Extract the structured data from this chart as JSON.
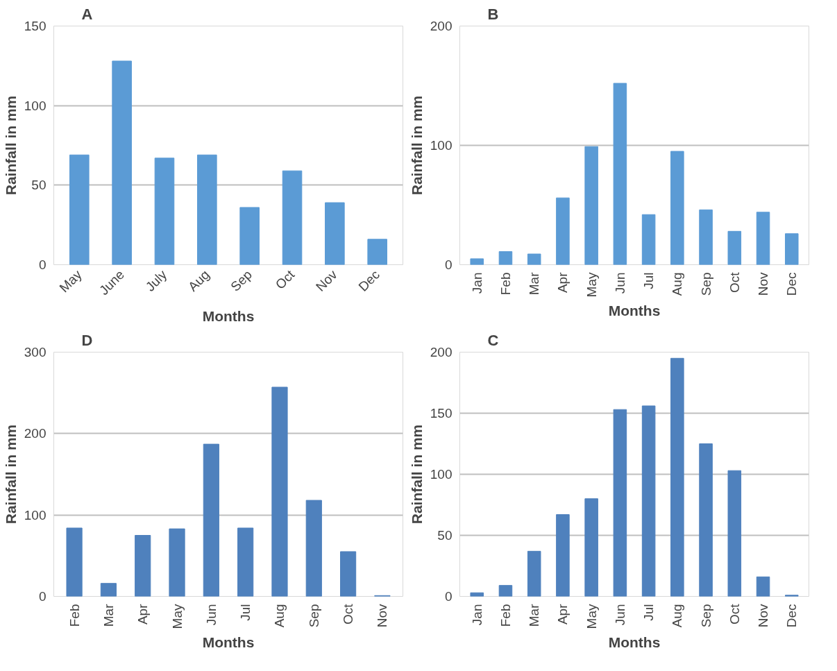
{
  "chart_data": [
    {
      "type": "bar",
      "title": "A",
      "xlabel": "Months",
      "ylabel": "Rainfall in mm",
      "categories": [
        "May",
        "June",
        "July",
        "Aug",
        "Sep",
        "Oct",
        "Nov",
        "Dec"
      ],
      "values": [
        69,
        128,
        67,
        69,
        36,
        59,
        39,
        16
      ],
      "color": "#5b9bd5",
      "ylim": [
        0,
        150
      ],
      "yticks": [
        0,
        50,
        100,
        150
      ],
      "grid": "y"
    },
    {
      "type": "bar",
      "title": "B",
      "xlabel": "Months",
      "ylabel": "Rainfall in mm",
      "categories": [
        "Jan",
        "Feb",
        "Mar",
        "Apr",
        "May",
        "Jun",
        "Jul",
        "Aug",
        "Sep",
        "Oct",
        "Nov",
        "Dec"
      ],
      "values": [
        5,
        11,
        9,
        56,
        99,
        152,
        42,
        95,
        46,
        28,
        44,
        26
      ],
      "color": "#5b9bd5",
      "ylim": [
        0,
        200
      ],
      "yticks": [
        0,
        100,
        200
      ],
      "grid": "y"
    },
    {
      "type": "bar",
      "title": "D",
      "xlabel": "Months",
      "ylabel": "Rainfall in mm",
      "categories": [
        "Feb",
        "Mar",
        "Apr",
        "May",
        "Jun",
        "Jul",
        "Aug",
        "Sep",
        "Oct",
        "Nov"
      ],
      "values": [
        84,
        16,
        75,
        83,
        187,
        84,
        257,
        118,
        55,
        1
      ],
      "color": "#4f81bd",
      "ylim": [
        0,
        300
      ],
      "yticks": [
        0,
        100,
        200,
        300
      ],
      "grid": "y"
    },
    {
      "type": "bar",
      "title": "C",
      "xlabel": "Months",
      "ylabel": "Rainfall in mm",
      "categories": [
        "Jan",
        "Feb",
        "Mar",
        "Apr",
        "May",
        "Jun",
        "Jul",
        "Aug",
        "Sep",
        "Oct",
        "Nov",
        "Dec"
      ],
      "values": [
        3,
        9,
        37,
        67,
        80,
        153,
        156,
        195,
        125,
        103,
        16,
        1
      ],
      "color": "#4f81bd",
      "ylim": [
        0,
        200
      ],
      "yticks": [
        0,
        50,
        100,
        150,
        200
      ],
      "grid": "y"
    }
  ]
}
